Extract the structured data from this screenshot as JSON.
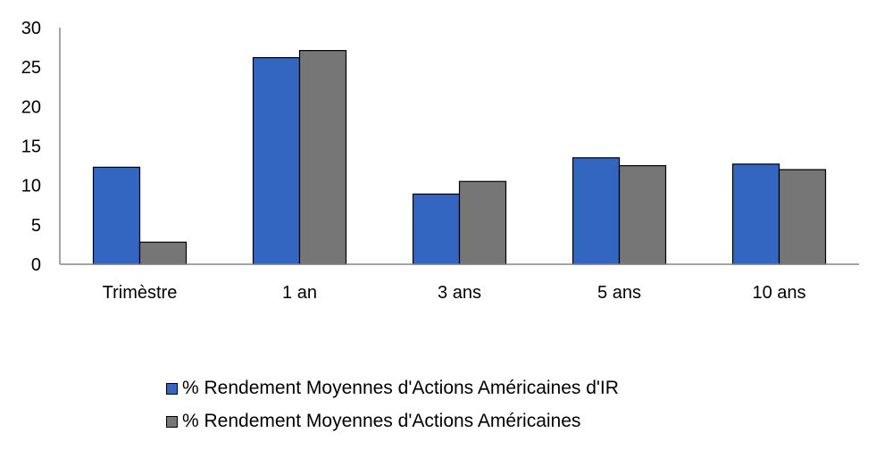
{
  "chart_data": {
    "type": "bar",
    "categories": [
      "Trimèstre",
      "1 an",
      "3 ans",
      "5 ans",
      "10 ans"
    ],
    "series": [
      {
        "name": "% Rendement Moyennes d'Actions Américaines d'IR",
        "color": "#3366c0",
        "values": [
          12.3,
          26.2,
          8.9,
          13.5,
          12.7
        ]
      },
      {
        "name": "% Rendement Moyennes d'Actions Américaines",
        "color": "#767676",
        "values": [
          2.8,
          27.1,
          10.5,
          12.5,
          12.0
        ]
      }
    ],
    "ylim": [
      0,
      30
    ],
    "yticks": [
      0,
      5,
      10,
      15,
      20,
      25,
      30
    ],
    "grid": false,
    "legend_position": "bottom"
  }
}
